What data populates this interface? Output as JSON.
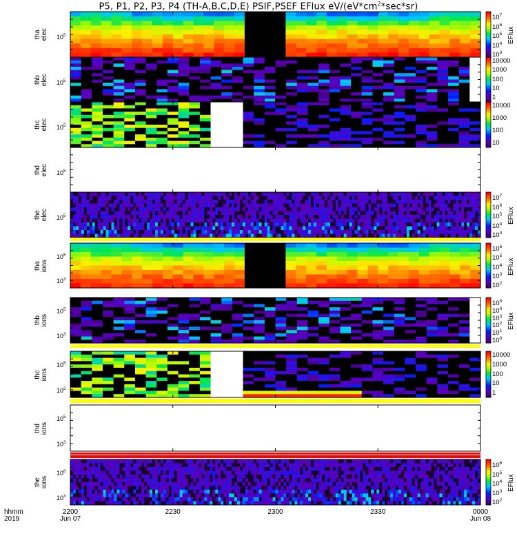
{
  "title": "P5, P1, P2, P3, P4 (TH-A,B,C,D,E) PSIF,PSEF EFlux eV/(eV*cm",
  "title_sup": "2",
  "title_tail": "*sec*sr)",
  "x_axis": {
    "row_labels": [
      "hhmm",
      "2019"
    ],
    "ticks": [
      {
        "label": "2200",
        "sub": "Jun 07"
      },
      {
        "label": "2230",
        "sub": ""
      },
      {
        "label": "2300",
        "sub": ""
      },
      {
        "label": "2330",
        "sub": ""
      },
      {
        "label": "0000",
        "sub": "Jun 08"
      }
    ]
  },
  "chart_data": {
    "type": "heatmap",
    "x_range": [
      "2019-06-07 22:00",
      "2019-06-08 00:00"
    ],
    "y_scale": "log",
    "panels": [
      {
        "name": "tha_elec",
        "label": [
          "tha",
          "elec"
        ],
        "ytick": "10^5",
        "colorbar": [
          "10^7",
          "10^6",
          "10^5",
          "10^4",
          "10^3"
        ],
        "cb_title": "EFlux",
        "cb_range_log": [
          3,
          7
        ],
        "scheme": "bright"
      },
      {
        "name": "thb_elec",
        "label": [
          "thb",
          "elec"
        ],
        "ytick": "10^5",
        "colorbar": [
          "10000",
          "1000",
          "100",
          "10",
          "1"
        ],
        "cb_title": "",
        "cb_range_log": [
          0,
          4
        ],
        "scheme": "dark"
      },
      {
        "name": "thc_elec",
        "label": [
          "thc",
          "elec"
        ],
        "ytick": "10^5",
        "colorbar": [
          "10000",
          "1000",
          "100",
          "10"
        ],
        "cb_title": "",
        "cb_range_log": [
          1,
          4
        ],
        "scheme": "thc"
      },
      {
        "name": "thd_elec",
        "label": [
          "thd",
          "elec"
        ],
        "ytick": "10^5",
        "colorbar": [],
        "cb_title": "",
        "cb_range_log": [
          0,
          1
        ],
        "scheme": "empty"
      },
      {
        "name": "the_elec",
        "label": [
          "the",
          "elec"
        ],
        "ytick": "10^5",
        "colorbar": [
          "10^7",
          "10^6",
          "10^5",
          "10^4",
          "10^3"
        ],
        "cb_title": "EFlux",
        "cb_range_log": [
          3,
          7
        ],
        "scheme": "noise"
      },
      {
        "name": "tha_ions",
        "label": [
          "tha",
          "ions"
        ],
        "ytick2": "10^6",
        "ytick": "10^3",
        "colorbar": [
          "10^6",
          "10^5",
          "10^4",
          "10^3",
          "10^2"
        ],
        "cb_title": "EFlux",
        "cb_range_log": [
          2,
          6
        ],
        "scheme": "bright"
      },
      {
        "name": "thb_ions",
        "label": [
          "thb",
          "ions"
        ],
        "ytick2": "10^5",
        "ytick": "10^3",
        "colorbar": [
          "10^5",
          "10^4",
          "10^3",
          "10^2",
          "10^1",
          "10^0"
        ],
        "cb_title": "EFlux",
        "cb_range_log": [
          0,
          5
        ],
        "scheme": "dark"
      },
      {
        "name": "thc_ions",
        "label": [
          "thc",
          "ions"
        ],
        "ytick2": "10^5",
        "ytick": "10^3",
        "colorbar": [
          "10000",
          "1000",
          "100",
          "10",
          "1"
        ],
        "cb_title": "",
        "cb_range_log": [
          0,
          4
        ],
        "scheme": "thc"
      },
      {
        "name": "thd_ions",
        "label": [
          "thd",
          "ions"
        ],
        "ytick2": "10^5",
        "ytick": "10^3",
        "colorbar": [],
        "cb_title": "",
        "cb_range_log": [
          0,
          1
        ],
        "scheme": "empty"
      },
      {
        "name": "the_ions",
        "label": [
          "the",
          "ions"
        ],
        "ytick2": "10^6",
        "ytick": "10^3",
        "colorbar": [
          "10^6",
          "10^5",
          "10^4",
          "10^3",
          "10^2"
        ],
        "cb_title": "EFlux",
        "cb_range_log": [
          2,
          6
        ],
        "scheme": "noise"
      }
    ]
  }
}
